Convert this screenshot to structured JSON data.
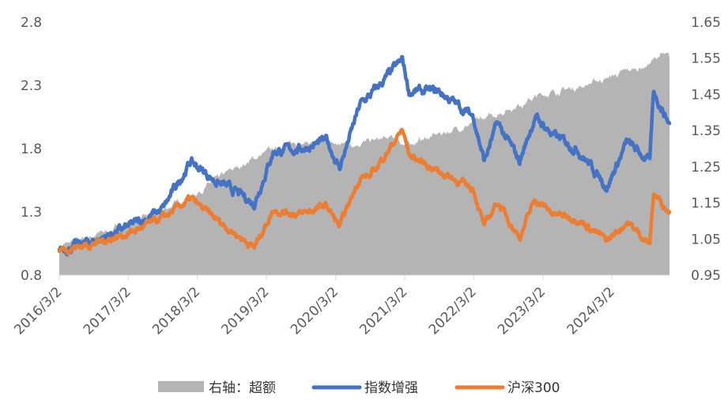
{
  "chart_data": {
    "type": "line",
    "x_tick_labels": [
      "2016/3/2",
      "2017/3/2",
      "2018/3/2",
      "2019/3/2",
      "2020/3/2",
      "2021/3/2",
      "2022/3/2",
      "2023/3/2",
      "2024/3/2"
    ],
    "x_range": [
      "2016/3/2",
      "2024/12/31"
    ],
    "left_axis": {
      "range": [
        0.8,
        2.8
      ],
      "ticks": [
        "0.8",
        "1.3",
        "1.8",
        "2.3",
        "2.8"
      ]
    },
    "right_axis": {
      "range": [
        0.95,
        1.65
      ],
      "ticks": [
        "0.95",
        "1.05",
        "1.15",
        "1.25",
        "1.35",
        "1.45",
        "1.55",
        "1.65"
      ]
    },
    "grid": false,
    "legend_position": "bottom",
    "series": [
      {
        "name": "右轴：超额",
        "kind": "area",
        "axis": "right",
        "color": "#b4b4b4",
        "points": [
          [
            "2016/3/2",
            1.03
          ],
          [
            "2016/9/1",
            1.06
          ],
          [
            "2017/3/2",
            1.09
          ],
          [
            "2017/9/1",
            1.13
          ],
          [
            "2018/3/2",
            1.18
          ],
          [
            "2018/9/1",
            1.24
          ],
          [
            "2019/3/2",
            1.29
          ],
          [
            "2019/9/1",
            1.32
          ],
          [
            "2020/3/2",
            1.31
          ],
          [
            "2020/9/1",
            1.32
          ],
          [
            "2021/1/20",
            1.33
          ],
          [
            "2021/3/2",
            1.31
          ],
          [
            "2021/9/1",
            1.34
          ],
          [
            "2022/3/2",
            1.37
          ],
          [
            "2022/9/1",
            1.41
          ],
          [
            "2023/3/2",
            1.45
          ],
          [
            "2023/9/1",
            1.47
          ],
          [
            "2024/3/2",
            1.5
          ],
          [
            "2024/9/1",
            1.53
          ],
          [
            "2024/11/15",
            1.56
          ],
          [
            "2024/12/31",
            1.55
          ]
        ]
      },
      {
        "name": "指数增强",
        "kind": "line",
        "axis": "left",
        "color": "#4472c4",
        "points": [
          [
            "2016/3/2",
            1.0
          ],
          [
            "2016/9/1",
            1.07
          ],
          [
            "2017/3/2",
            1.18
          ],
          [
            "2017/9/1",
            1.32
          ],
          [
            "2018/1/25",
            1.7
          ],
          [
            "2018/6/1",
            1.55
          ],
          [
            "2018/12/28",
            1.37
          ],
          [
            "2019/4/8",
            1.78
          ],
          [
            "2019/9/1",
            1.8
          ],
          [
            "2020/1/14",
            1.86
          ],
          [
            "2020/3/23",
            1.65
          ],
          [
            "2020/7/10",
            2.15
          ],
          [
            "2020/9/1",
            2.22
          ],
          [
            "2021/2/18",
            2.5
          ],
          [
            "2021/3/25",
            2.25
          ],
          [
            "2021/9/1",
            2.25
          ],
          [
            "2022/3/2",
            2.05
          ],
          [
            "2022/4/27",
            1.7
          ],
          [
            "2022/7/5",
            2.0
          ],
          [
            "2022/10/31",
            1.7
          ],
          [
            "2023/1/20",
            2.05
          ],
          [
            "2023/5/1",
            1.9
          ],
          [
            "2023/9/1",
            1.8
          ],
          [
            "2024/2/5",
            1.5
          ],
          [
            "2024/5/20",
            1.85
          ],
          [
            "2024/9/18",
            1.7
          ],
          [
            "2024/10/8",
            2.25
          ],
          [
            "2024/12/31",
            2.0
          ]
        ]
      },
      {
        "name": "沪深300",
        "kind": "line",
        "axis": "left",
        "color": "#ed7d31",
        "points": [
          [
            "2016/3/2",
            1.0
          ],
          [
            "2016/9/1",
            1.05
          ],
          [
            "2017/3/2",
            1.13
          ],
          [
            "2017/9/1",
            1.25
          ],
          [
            "2018/1/25",
            1.4
          ],
          [
            "2018/6/1",
            1.25
          ],
          [
            "2018/12/28",
            1.02
          ],
          [
            "2019/4/8",
            1.32
          ],
          [
            "2019/9/1",
            1.28
          ],
          [
            "2020/1/14",
            1.35
          ],
          [
            "2020/3/23",
            1.18
          ],
          [
            "2020/7/10",
            1.58
          ],
          [
            "2020/9/1",
            1.58
          ],
          [
            "2021/2/18",
            1.95
          ],
          [
            "2021/3/25",
            1.75
          ],
          [
            "2021/9/1",
            1.62
          ],
          [
            "2022/3/2",
            1.48
          ],
          [
            "2022/4/27",
            1.18
          ],
          [
            "2022/7/5",
            1.38
          ],
          [
            "2022/10/31",
            1.1
          ],
          [
            "2023/1/20",
            1.4
          ],
          [
            "2023/5/1",
            1.28
          ],
          [
            "2023/9/1",
            1.25
          ],
          [
            "2024/2/5",
            1.07
          ],
          [
            "2024/5/20",
            1.22
          ],
          [
            "2024/9/18",
            1.05
          ],
          [
            "2024/10/8",
            1.45
          ],
          [
            "2024/12/31",
            1.3
          ]
        ]
      }
    ]
  }
}
